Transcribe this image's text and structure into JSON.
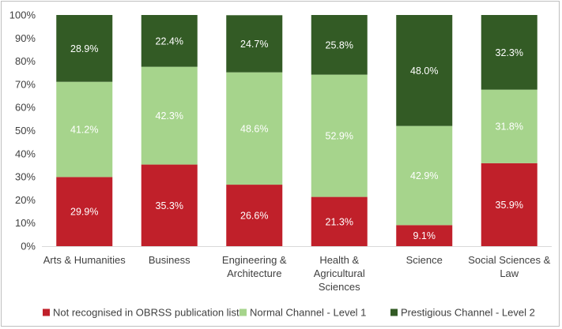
{
  "chart_data": {
    "type": "bar",
    "stacked": true,
    "percent": true,
    "categories": [
      [
        "Arts & Humanities"
      ],
      [
        "Business"
      ],
      [
        "Engineering &",
        "Architecture"
      ],
      [
        "Health &",
        "Agricultural",
        "Sciences"
      ],
      [
        "Science"
      ],
      [
        "Social Sciences &",
        "Law"
      ]
    ],
    "series": [
      {
        "name": "Not recognised in OBRSS publication list",
        "color": "#c0202a",
        "values": [
          29.9,
          35.3,
          26.6,
          21.3,
          9.1,
          35.9
        ],
        "labels": [
          "29.9%",
          "35.3%",
          "26.6%",
          "21.3%",
          "9.1%",
          "35.9%"
        ]
      },
      {
        "name": "Normal Channel - Level 1",
        "color": "#a6d48c",
        "values": [
          41.2,
          42.3,
          48.6,
          52.9,
          42.9,
          31.8
        ],
        "labels": [
          "41.2%",
          "42.3%",
          "48.6%",
          "52.9%",
          "42.9%",
          "31.8%"
        ]
      },
      {
        "name": "Prestigious Channel - Level 2",
        "color": "#335b25",
        "values": [
          28.9,
          22.4,
          24.7,
          25.8,
          48.0,
          32.3
        ],
        "labels": [
          "28.9%",
          "22.4%",
          "24.7%",
          "25.8%",
          "48.0%",
          "32.3%"
        ]
      }
    ],
    "yticks": [
      "0%",
      "10%",
      "20%",
      "30%",
      "40%",
      "50%",
      "60%",
      "70%",
      "80%",
      "90%",
      "100%"
    ],
    "ylim": [
      0,
      100
    ],
    "grid": false,
    "legend_position": "bottom",
    "title": "",
    "xlabel": "",
    "ylabel": ""
  }
}
